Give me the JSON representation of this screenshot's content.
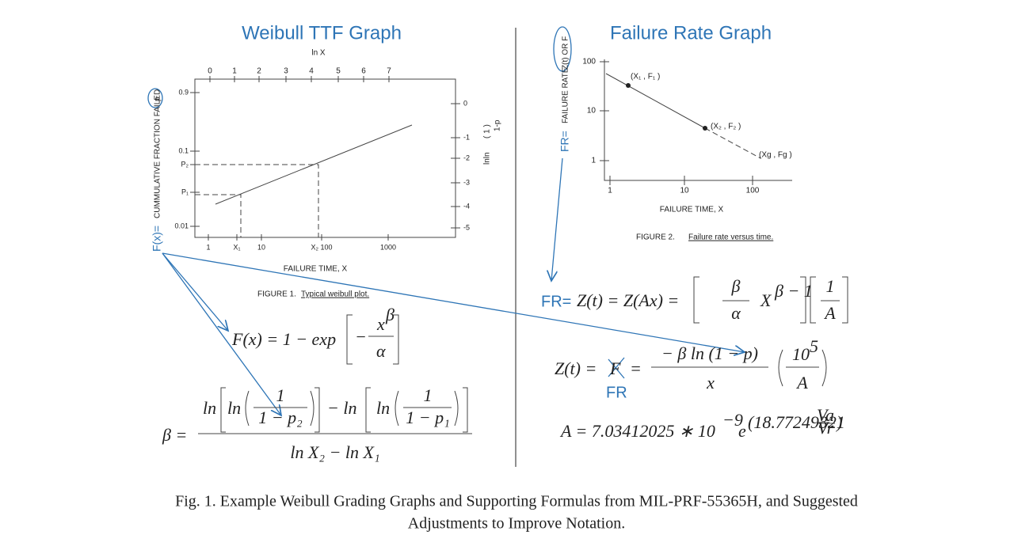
{
  "left": {
    "title": "Weibull TTF Graph",
    "top_axis_label": "ln X",
    "top_ticks": [
      "0",
      "1",
      "2",
      "3",
      "4",
      "5",
      "6",
      "7"
    ],
    "bottom_ticks": [
      "1",
      "X₁",
      "10",
      "X₂ 100",
      "1000"
    ],
    "left_ticks": [
      "0.9",
      "0.1",
      "P₂",
      "P₁",
      "0.01"
    ],
    "right_ticks": [
      "0",
      "-1",
      "-2",
      "-3",
      "-4",
      "-5"
    ],
    "right_axis_label": "lnln",
    "right_axis_num": "(  1  )",
    "right_axis_den": "1-p",
    "y_axis_prefix": "F(x)=",
    "y_axis_label": "CUMMULATIVE FRACTION FAILED",
    "y_axis_p": "p",
    "x_axis_label": "FAILURE TIME, X",
    "figure_label": "FIGURE 1.",
    "figure_caption": "Typical weibull plot."
  },
  "formula_fx": {
    "lhs": "F(x) = 1 − exp",
    "minus": "−",
    "num": "x",
    "num_sup": "β",
    "den": "α"
  },
  "formula_beta": {
    "lhs": "β =",
    "ln1": "ln",
    "ln2": "ln",
    "one1": "1",
    "den1": "1 − p₂",
    "minus": "−  ln",
    "ln3": "ln",
    "one2": "1",
    "den2": "1 − p₁",
    "denominator": "ln X₂ − ln X₁"
  },
  "right": {
    "title": "Failure Rate Graph",
    "y_ticks": [
      "100",
      "10",
      "1"
    ],
    "x_ticks": [
      "1",
      "10",
      "100"
    ],
    "points": [
      "(X₁ , F₁ )",
      "(X₂ , F₂ )",
      "(Xg , Fg )"
    ],
    "y_axis_prefix": "FR=",
    "y_axis_label": "FAILURE RATE",
    "y_axis_circled": "Z(t) OR F",
    "x_axis_label": "FAILURE TIME, X",
    "figure_label": "FIGURE 2.",
    "figure_caption": "Failure rate versus time."
  },
  "formula_fr": {
    "prefix": "FR=",
    "lhs": "Z(t) = Z(Ax) =",
    "beta": "β",
    "alpha": "α",
    "x": "X",
    "sup": "β − 1",
    "one": "1",
    "a": "A"
  },
  "formula_z": {
    "lhs": "Z(t) =",
    "f": "F",
    "eq": "=",
    "num": "− β ln (1 − p)",
    "den": "x",
    "ten": "10",
    "five": "5",
    "a": "A",
    "fr": "FR"
  },
  "formula_a": {
    "lhs": "A = 7.03412025 ∗ 10",
    "exp": "−9",
    "e": "e",
    "coef": "(18.77249321",
    "va": "Va",
    "vr": "Vr",
    "close": ")"
  },
  "caption": {
    "line1": "Fig. 1.  Example Weibull Grading Graphs and Supporting Formulas from MIL-PRF-55365H, and Suggested",
    "line2": "Adjustments to Improve Notation."
  }
}
